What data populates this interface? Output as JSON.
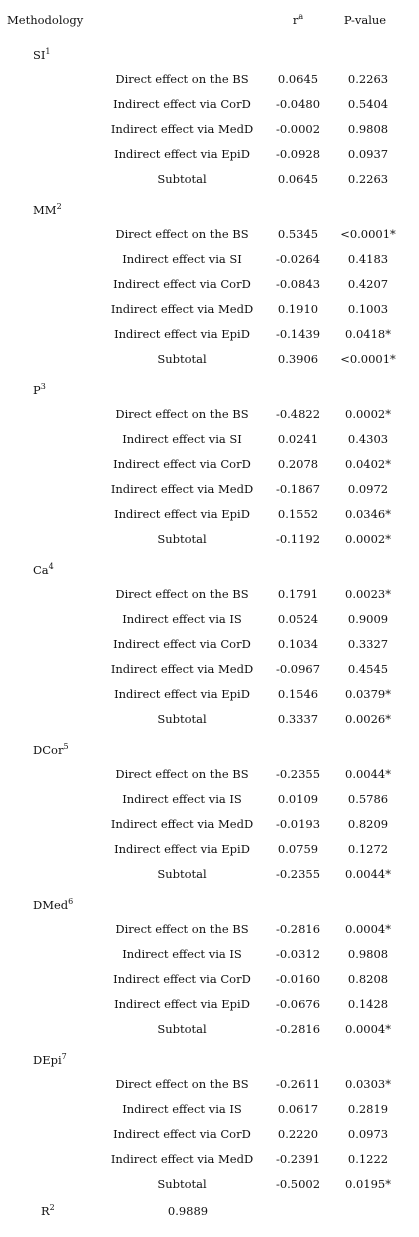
{
  "header": {
    "methodology": "Methodology",
    "r": "r",
    "r_sup": "a",
    "p_value": "P-value"
  },
  "groups": [
    {
      "label": "SI",
      "sup": "1",
      "rows": [
        [
          "Direct effect on the BS",
          "0.0645",
          "0.2263"
        ],
        [
          "Indirect effect via CorD",
          "-0.0480",
          "0.5404"
        ],
        [
          "Indirect effect via MedD",
          "-0.0002",
          "0.9808"
        ],
        [
          "Indirect effect via EpiD",
          "-0.0928",
          "0.0937"
        ],
        [
          "Subtotal",
          "0.0645",
          "0.2263"
        ]
      ]
    },
    {
      "label": "MM",
      "sup": "2",
      "rows": [
        [
          "Direct effect on the BS",
          "0.5345",
          "<0.0001*"
        ],
        [
          "Indirect effect via SI",
          "-0.0264",
          "0.4183"
        ],
        [
          "Indirect effect via CorD",
          "-0.0843",
          "0.4207"
        ],
        [
          "Indirect effect via MedD",
          "0.1910",
          "0.1003"
        ],
        [
          "Indirect effect via EpiD",
          "-0.1439",
          "0.0418*"
        ],
        [
          "Subtotal",
          "0.3906",
          "<0.0001*"
        ]
      ]
    },
    {
      "label": "P",
      "sup": "3",
      "rows": [
        [
          "Direct effect on the BS",
          "-0.4822",
          "0.0002*"
        ],
        [
          "Indirect effect via SI",
          "0.0241",
          "0.4303"
        ],
        [
          "Indirect effect via CorD",
          "0.2078",
          "0.0402*"
        ],
        [
          "Indirect effect via MedD",
          "-0.1867",
          "0.0972"
        ],
        [
          "Indirect effect via EpiD",
          "0.1552",
          "0.0346*"
        ],
        [
          "Subtotal",
          "-0.1192",
          "0.0002*"
        ]
      ]
    },
    {
      "label": "Ca",
      "sup": "4",
      "rows": [
        [
          "Direct effect on the BS",
          "0.1791",
          "0.0023*"
        ],
        [
          "Indirect effect via IS",
          "0.0524",
          "0.9009"
        ],
        [
          "Indirect effect via CorD",
          "0.1034",
          "0.3327"
        ],
        [
          "Indirect effect via MedD",
          "-0.0967",
          "0.4545"
        ],
        [
          "Indirect effect via EpiD",
          "0.1546",
          "0.0379*"
        ],
        [
          "Subtotal",
          "0.3337",
          "0.0026*"
        ]
      ]
    },
    {
      "label": "DCor",
      "sup": "5",
      "rows": [
        [
          "Direct effect on the BS",
          "-0.2355",
          "0.0044*"
        ],
        [
          "Indirect effect via IS",
          "0.0109",
          "0.5786"
        ],
        [
          "Indirect effect via MedD",
          "-0.0193",
          "0.8209"
        ],
        [
          "Indirect effect via EpiD",
          "0.0759",
          "0.1272"
        ],
        [
          "Subtotal",
          "-0.2355",
          "0.0044*"
        ]
      ]
    },
    {
      "label": "DMed",
      "sup": "6",
      "rows": [
        [
          "Direct effect on the BS",
          "-0.2816",
          "0.0004*"
        ],
        [
          "Indirect effect via IS",
          "-0.0312",
          "0.9808"
        ],
        [
          "Indirect effect via CorD",
          "-0.0160",
          "0.8208"
        ],
        [
          "Indirect effect via EpiD",
          "-0.0676",
          "0.1428"
        ],
        [
          "Subtotal",
          "-0.2816",
          "0.0004*"
        ]
      ]
    },
    {
      "label": "DEpi",
      "sup": "7",
      "rows": [
        [
          "Direct effect on the BS",
          "-0.2611",
          "0.0303*"
        ],
        [
          "Indirect effect via IS",
          "0.0617",
          "0.2819"
        ],
        [
          "Indirect effect via CorD",
          "0.2220",
          "0.0973"
        ],
        [
          "Indirect effect via MedD",
          "-0.2391",
          "0.1222"
        ],
        [
          "Subtotal",
          "-0.5002",
          "0.0195*"
        ]
      ]
    }
  ],
  "r2": {
    "label": "R",
    "sup": "2",
    "value": "0.9889"
  }
}
